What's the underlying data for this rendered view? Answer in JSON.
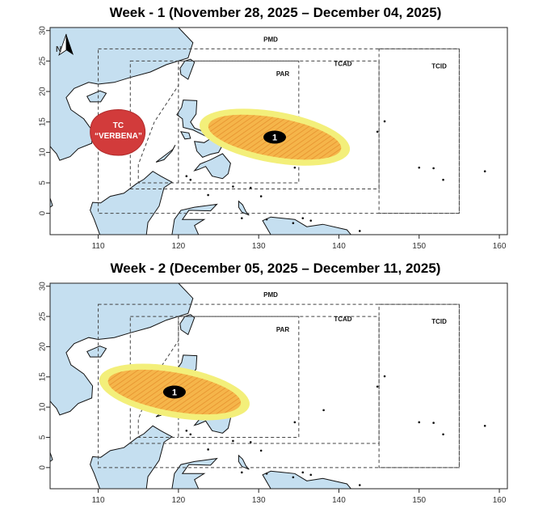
{
  "panels": [
    {
      "title": "Week - 1 (November 28, 2025 – December 04, 2025)",
      "cyclone": {
        "label_line1": "TC",
        "label_line2": "“VERBENA”",
        "lon": 112.5,
        "lat": 13.5
      },
      "area": {
        "id": "1",
        "lon": 132,
        "lat": 12.5
      },
      "show_north_arrow": true
    },
    {
      "title": "Week - 2 (December 05, 2025 – December 11, 2025)",
      "cyclone": null,
      "area": {
        "id": "1",
        "lon": 119.5,
        "lat": 12.5
      },
      "show_north_arrow": false
    }
  ],
  "zones": [
    {
      "name": "PMD",
      "lon_min": 110,
      "lon_max": 155,
      "lat_min": 0,
      "lat_max": 27,
      "label_lon": 131.5,
      "label_lat": 28.2
    },
    {
      "name": "TCAD",
      "lon_min": 114,
      "lon_max": 145,
      "lat_min": 4,
      "lat_max": 25,
      "label_lon": 140.5,
      "label_lat": 24.2
    },
    {
      "name": "TCID",
      "lon_min": 145,
      "lon_max": 155,
      "lat_min": 0,
      "lat_max": 27,
      "label_lon": 152.5,
      "label_lat": 23.8
    },
    {
      "name": "PAR",
      "lon_min": 120,
      "lon_max": 135,
      "lat_min": 5,
      "lat_max": 25,
      "label_lon": 133,
      "label_lat": 22.5
    }
  ],
  "axes": {
    "x_ticks": [
      110,
      120,
      130,
      140,
      150,
      160
    ],
    "y_ticks": [
      0,
      5,
      10,
      15,
      20,
      25,
      30
    ],
    "lon_range": [
      104,
      161
    ],
    "lat_range": [
      -3.5,
      30.5
    ]
  },
  "colors": {
    "land": "#c5dff0",
    "coast": "#111111",
    "cyclone": "#d23b3b",
    "area_outer": "#f3ef7a",
    "area_inner": "#f5b54a",
    "marker": "#000000"
  },
  "north_arrow_label": "N"
}
